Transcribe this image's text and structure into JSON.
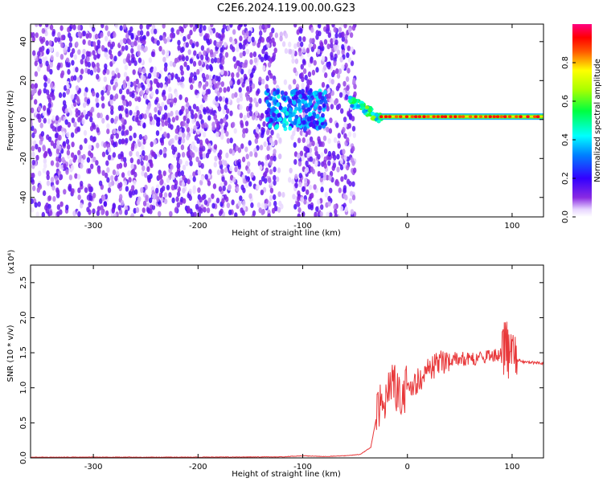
{
  "title": "C2E6.2024.119.00.00.G23",
  "chart_data": [
    {
      "type": "heatmap",
      "xlabel": "Height of straight line (km)",
      "ylabel": "Frequency (Hz)",
      "xlim": [
        -360,
        130
      ],
      "ylim": [
        -50,
        49
      ],
      "xticks": [
        -300,
        -200,
        -100,
        0,
        100
      ],
      "xtick_labels": [
        "-300",
        "-200",
        "-100",
        "0",
        "100"
      ],
      "yticks": [
        -40,
        -20,
        0,
        20,
        40
      ],
      "ytick_labels": [
        "-40",
        "-20",
        "0",
        "20",
        "40"
      ],
      "colorbar": {
        "label": "Normalized spectral amplitude",
        "range": [
          0,
          1
        ],
        "ticks": [
          0.0,
          0.2,
          0.4,
          0.6,
          0.8
        ],
        "tick_labels": [
          "0.0",
          "0.2",
          "0.4",
          "0.6",
          "0.8"
        ],
        "colormap": "rainbow (white → violet → blue → cyan → green → yellow → red → magenta)"
      },
      "features": [
        {
          "name": "broadband noise",
          "x_range": [
            -360,
            -50
          ],
          "freq_range": [
            -50,
            49
          ],
          "amplitude": 0.1
        },
        {
          "name": "gap",
          "x_range": [
            -125,
            -108
          ],
          "freq_range": [
            -50,
            49
          ],
          "amplitude": 0.03
        },
        {
          "name": "tone cluster",
          "x_range": [
            -135,
            -78
          ],
          "freq_range": [
            -5,
            15
          ],
          "amplitude": 0.3
        },
        {
          "name": "descending tone",
          "x_range": [
            -55,
            -25
          ],
          "freq_from": 10,
          "freq_to": 0,
          "amplitude": 0.5
        },
        {
          "name": "steady carrier",
          "x_range": [
            -25,
            130
          ],
          "frequency": 1.5,
          "amplitude": 0.9
        }
      ],
      "grid": false
    },
    {
      "type": "line",
      "xlabel": "Height of straight line (km)",
      "ylabel": "SNR (10 * v/v)",
      "y_multiplier": "(x10⁴)",
      "xlim": [
        -360,
        130
      ],
      "ylim": [
        0,
        2.75
      ],
      "xticks": [
        -300,
        -200,
        -100,
        0,
        100
      ],
      "xtick_labels": [
        "-300",
        "-200",
        "-100",
        "0",
        "100"
      ],
      "yticks": [
        0.0,
        0.5,
        1.0,
        1.5,
        2.0,
        2.5
      ],
      "ytick_labels": [
        "0.0",
        "0.5",
        "1.0",
        "1.5",
        "2.0",
        "2.5"
      ],
      "series": [
        {
          "color": "#e8383a",
          "x": [
            -360,
            -300,
            -200,
            -120,
            -100,
            -80,
            -60,
            -45,
            -35,
            -30,
            -25,
            -20,
            -15,
            -10,
            -5,
            0,
            10,
            20,
            30,
            40,
            50,
            60,
            70,
            80,
            90,
            95,
            100,
            105,
            110,
            120,
            130
          ],
          "y": [
            0.01,
            0.01,
            0.01,
            0.015,
            0.03,
            0.02,
            0.03,
            0.05,
            0.15,
            0.55,
            0.9,
            0.85,
            1.1,
            0.95,
            0.95,
            1.0,
            1.1,
            1.25,
            1.35,
            1.4,
            1.42,
            1.4,
            1.45,
            1.45,
            1.5,
            1.6,
            1.5,
            1.4,
            1.37,
            1.36,
            1.35
          ]
        }
      ],
      "grid": false
    }
  ]
}
